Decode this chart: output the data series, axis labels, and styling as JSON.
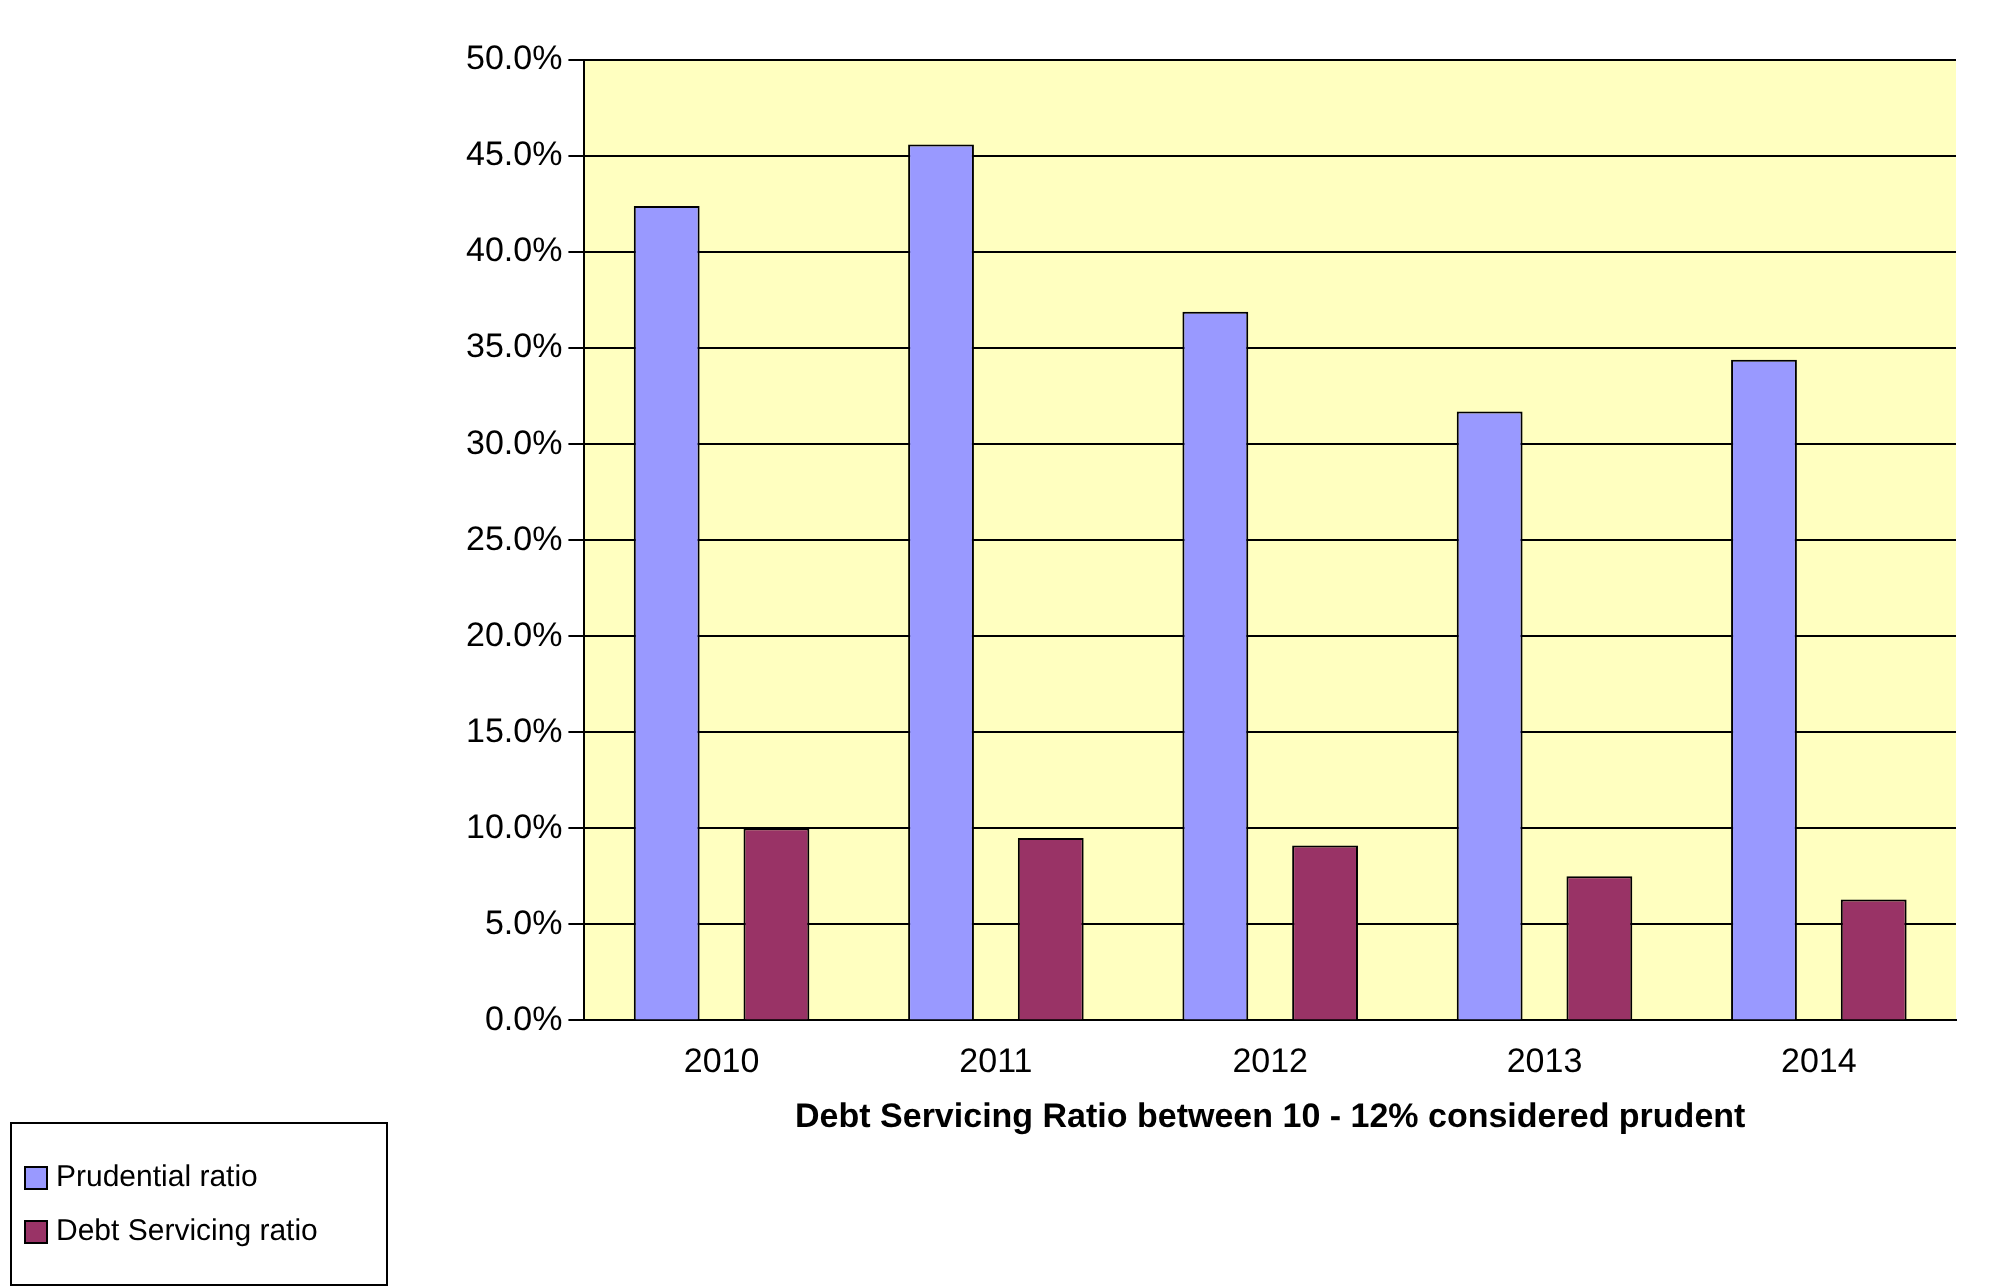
{
  "chart_data": {
    "type": "bar",
    "xlabel": "Debt Servicing Ratio between 10 - 12% considered prudent",
    "categories": [
      "2010",
      "2011",
      "2012",
      "2013",
      "2014"
    ],
    "series": [
      {
        "name": "Prudential ratio",
        "color": "#9999ff",
        "values": [
          42.4,
          45.6,
          36.9,
          31.7,
          34.4
        ]
      },
      {
        "name": "Debt Servicing ratio",
        "color": "#993366",
        "values": [
          10.0,
          9.5,
          9.1,
          7.5,
          6.3
        ]
      }
    ],
    "ylim": [
      0,
      50
    ],
    "yticks": [
      {
        "value": 0,
        "label": "0.0%"
      },
      {
        "value": 5,
        "label": "5.0%"
      },
      {
        "value": 10,
        "label": "10.0%"
      },
      {
        "value": 15,
        "label": "15.0%"
      },
      {
        "value": 20,
        "label": "20.0%"
      },
      {
        "value": 25,
        "label": "25.0%"
      },
      {
        "value": 30,
        "label": "30.0%"
      },
      {
        "value": 35,
        "label": "35.0%"
      },
      {
        "value": 40,
        "label": "40.0%"
      },
      {
        "value": 45,
        "label": "45.0%"
      },
      {
        "value": 50,
        "label": "50.0%"
      }
    ],
    "grid": "y",
    "legend": "bottom left"
  }
}
